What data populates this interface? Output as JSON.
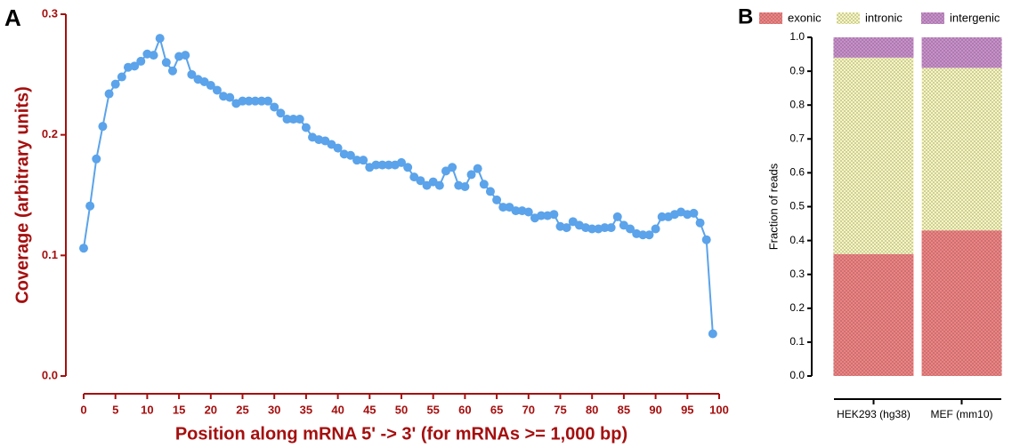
{
  "chart_data": [
    {
      "type": "line",
      "panel_label": "A",
      "x_label": "Position along mRNA 5' -> 3' (for mRNAs >= 1,000 bp)",
      "y_label": "Coverage (arbitrary units)",
      "x": [
        0,
        1,
        2,
        3,
        4,
        5,
        6,
        7,
        8,
        9,
        10,
        11,
        12,
        13,
        14,
        15,
        16,
        17,
        18,
        19,
        20,
        21,
        22,
        23,
        24,
        25,
        26,
        27,
        28,
        29,
        30,
        31,
        32,
        33,
        34,
        35,
        36,
        37,
        38,
        39,
        40,
        41,
        42,
        43,
        44,
        45,
        46,
        47,
        48,
        49,
        50,
        51,
        52,
        53,
        54,
        55,
        56,
        57,
        58,
        59,
        60,
        61,
        62,
        63,
        64,
        65,
        66,
        67,
        68,
        69,
        70,
        71,
        72,
        73,
        74,
        75,
        76,
        77,
        78,
        79,
        80,
        81,
        82,
        83,
        84,
        85,
        86,
        87,
        88,
        89,
        90,
        91,
        92,
        93,
        94,
        95,
        96,
        97,
        98,
        99
      ],
      "values": [
        0.106,
        0.141,
        0.18,
        0.207,
        0.234,
        0.242,
        0.248,
        0.256,
        0.257,
        0.261,
        0.267,
        0.266,
        0.28,
        0.26,
        0.253,
        0.265,
        0.266,
        0.25,
        0.246,
        0.244,
        0.241,
        0.237,
        0.232,
        0.231,
        0.226,
        0.228,
        0.228,
        0.228,
        0.228,
        0.228,
        0.223,
        0.218,
        0.213,
        0.213,
        0.213,
        0.206,
        0.198,
        0.196,
        0.195,
        0.192,
        0.189,
        0.184,
        0.183,
        0.179,
        0.179,
        0.173,
        0.175,
        0.175,
        0.175,
        0.175,
        0.177,
        0.173,
        0.165,
        0.162,
        0.158,
        0.161,
        0.158,
        0.17,
        0.173,
        0.158,
        0.157,
        0.167,
        0.172,
        0.159,
        0.153,
        0.146,
        0.14,
        0.14,
        0.137,
        0.137,
        0.136,
        0.131,
        0.133,
        0.133,
        0.134,
        0.124,
        0.123,
        0.128,
        0.125,
        0.123,
        0.122,
        0.122,
        0.123,
        0.123,
        0.132,
        0.125,
        0.122,
        0.118,
        0.117,
        0.117,
        0.122,
        0.132,
        0.132,
        0.134,
        0.136,
        0.134,
        0.135,
        0.127,
        0.113,
        0.035
      ],
      "color": "#5ba3ea",
      "axis_color": "#a50f0f",
      "xlim": [
        0,
        100
      ],
      "xticks": [
        0,
        5,
        10,
        15,
        20,
        25,
        30,
        35,
        40,
        45,
        50,
        55,
        60,
        65,
        70,
        75,
        80,
        85,
        90,
        95,
        100
      ],
      "ylim": [
        0,
        0.3
      ],
      "yticks": [
        {
          "value": 0,
          "label": "0.0"
        },
        0.1,
        0.2,
        0.3
      ]
    },
    {
      "type": "stacked_bar",
      "panel_label": "B",
      "y_label": "Fraction of reads",
      "categories": [
        "HEK293 (hg38)",
        "MEF (mm10)"
      ],
      "series": [
        {
          "name": "exonic",
          "color": "#f08282",
          "values": [
            0.36,
            0.43
          ]
        },
        {
          "name": "intronic",
          "color": "#f6f6bc",
          "values": [
            0.58,
            0.48
          ]
        },
        {
          "name": "intergenic",
          "color": "#c98fcb",
          "values": [
            0.06,
            0.09
          ]
        }
      ],
      "legend": "top",
      "ylim": [
        0,
        1
      ],
      "yticks": [
        {
          "value": 0,
          "label": "0.0"
        },
        0.1,
        0.2,
        0.3,
        0.4,
        0.5,
        0.6,
        0.7,
        0.8,
        0.9,
        {
          "value": 1,
          "label": "1.0"
        }
      ]
    }
  ]
}
